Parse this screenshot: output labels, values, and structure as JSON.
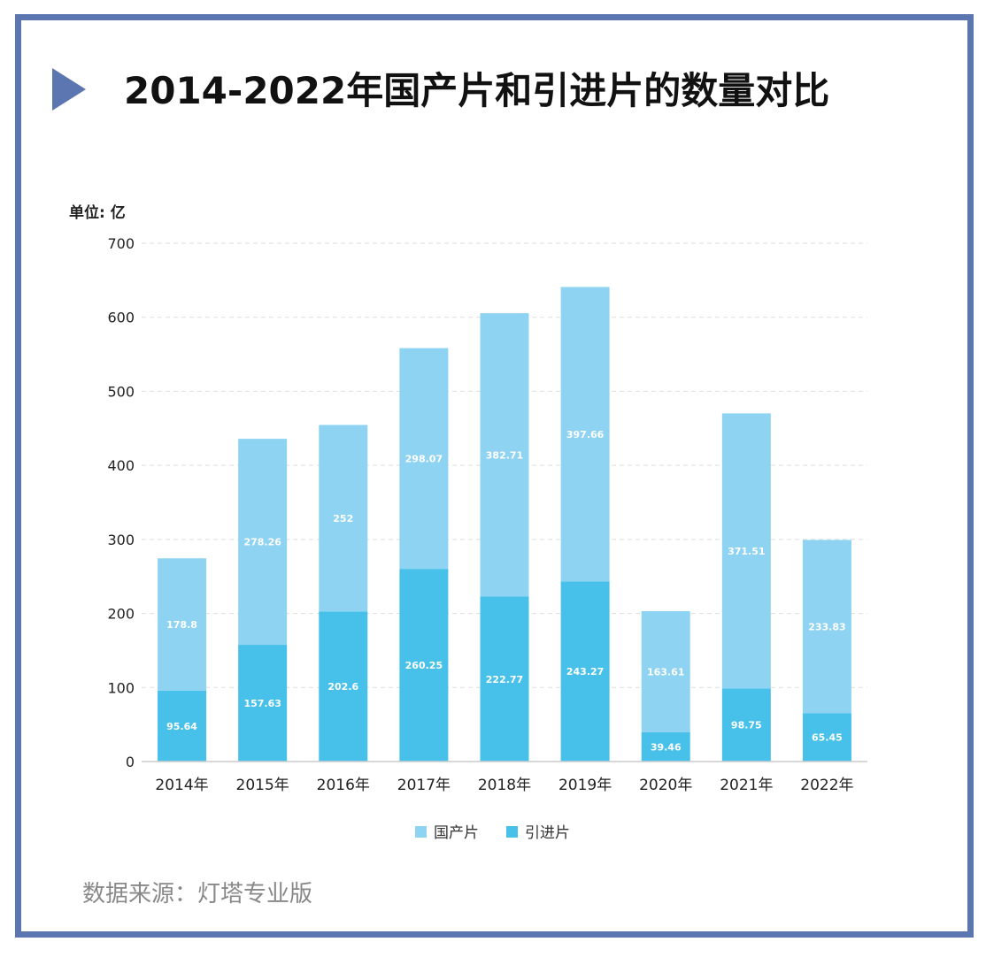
{
  "colors": {
    "frame": "#5b76b1",
    "domestic": "#8fd3f2",
    "imported": "#48c1ea",
    "grid": "#dddddd"
  },
  "title": "2014-2022年国产片和引进片的数量对比",
  "unit_label": "单位: 亿",
  "source": "数据来源：灯塔专业版",
  "chart_data": {
    "type": "bar",
    "stacked": true,
    "title": "2014-2022年国产片和引进片的数量对比",
    "ylabel": "单位: 亿",
    "ylim": [
      0,
      700
    ],
    "yticks": [
      "0",
      "100",
      "200",
      "300",
      "400",
      "500",
      "600",
      "700"
    ],
    "categories": [
      "2014年",
      "2015年",
      "2016年",
      "2017年",
      "2018年",
      "2019年",
      "2020年",
      "2021年",
      "2022年"
    ],
    "series": [
      {
        "name": "引进片",
        "values": [
          95.64,
          157.63,
          202.6,
          260.25,
          222.77,
          243.27,
          39.46,
          98.75,
          65.45
        ],
        "labels": [
          "95.64",
          "157.63",
          "202.6",
          "260.25",
          "222.77",
          "243.27",
          "39.46",
          "98.75",
          "65.45"
        ]
      },
      {
        "name": "国产片",
        "values": [
          178.8,
          278.26,
          252,
          298.07,
          382.71,
          397.66,
          163.61,
          371.51,
          233.83
        ],
        "labels": [
          "178.8",
          "278.26",
          "252",
          "298.07",
          "382.71",
          "397.66",
          "163.61",
          "371.51",
          "233.83"
        ]
      }
    ],
    "legend": [
      "国产片",
      "引进片"
    ],
    "legend_position": "bottom"
  }
}
